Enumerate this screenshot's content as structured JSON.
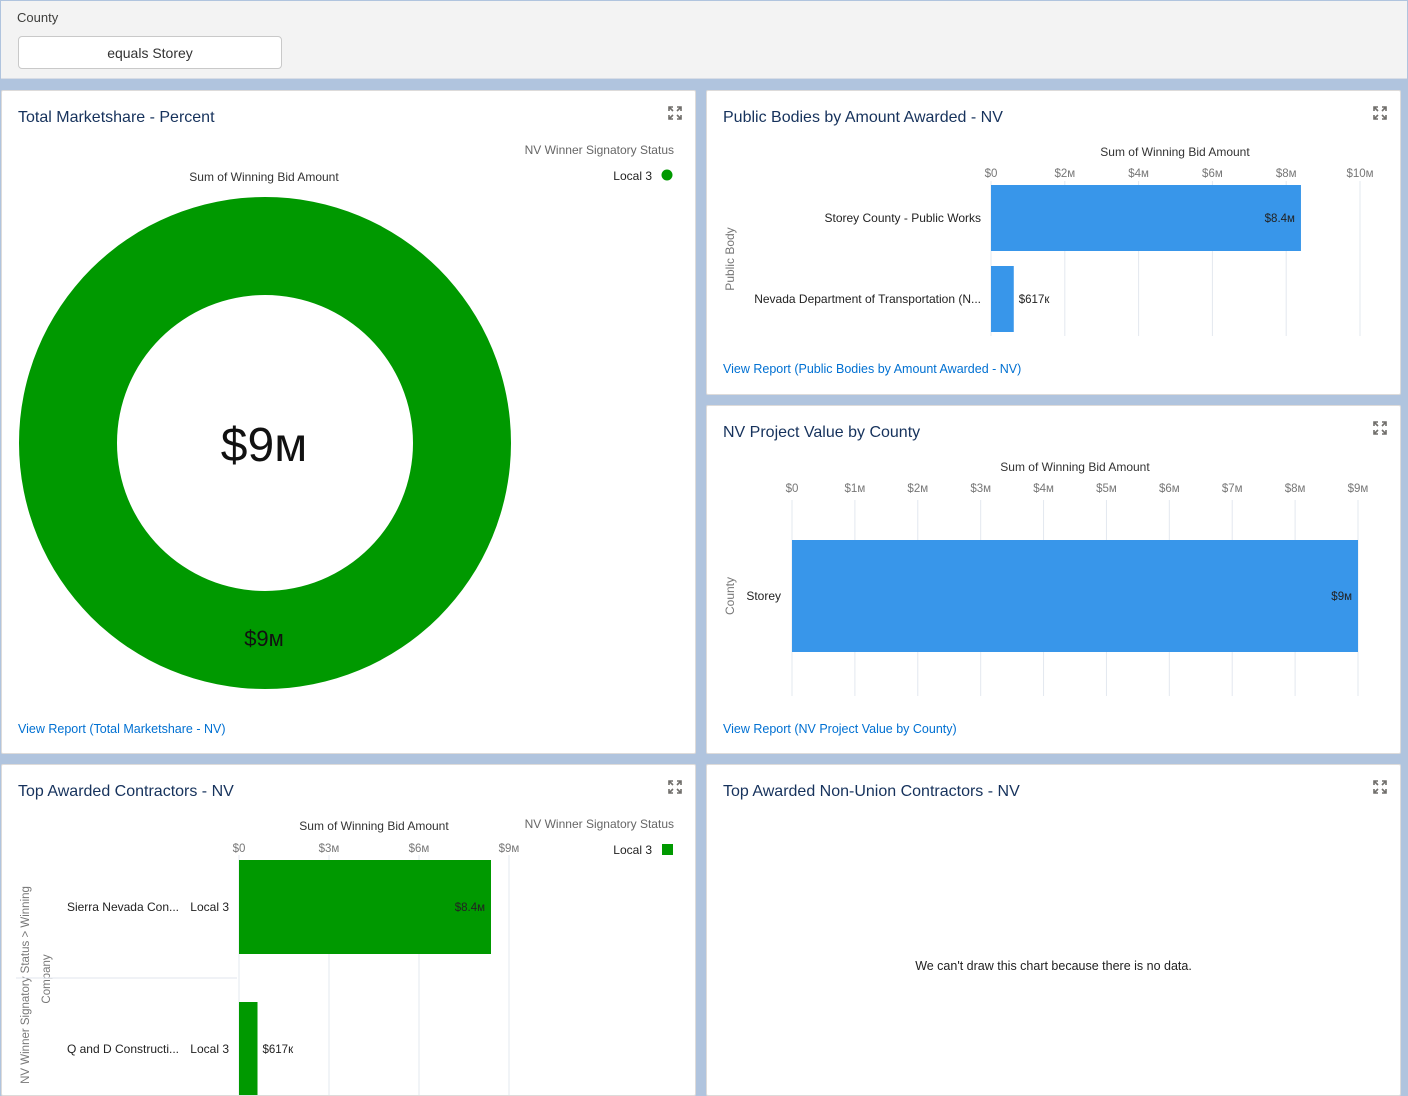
{
  "filter": {
    "label": "County",
    "value": "equals Storey"
  },
  "colors": {
    "accent_green": "#009900",
    "bar_blue": "#3896ea",
    "link": "#0070d2"
  },
  "cards": {
    "marketshare": {
      "title": "Total Marketshare - Percent",
      "link": "View Report (Total Marketshare - NV)",
      "legend_title": "NV Winner Signatory Status",
      "legend_item": "Local 3",
      "metric_label": "Sum of Winning Bid Amount",
      "center_value": "$9м",
      "slice_label": "$9м"
    },
    "public_bodies": {
      "title": "Public Bodies by Amount Awarded - NV",
      "link": "View Report (Public Bodies by Amount Awarded - NV)",
      "xlabel": "Sum of Winning Bid Amount",
      "ylabel": "Public Body"
    },
    "county_value": {
      "title": "NV Project Value by County",
      "link": "View Report (NV Project Value by County)",
      "xlabel": "Sum of Winning Bid Amount",
      "ylabel": "County"
    },
    "top_contractors": {
      "title": "Top Awarded Contractors - NV",
      "xlabel": "Sum of Winning Bid Amount",
      "ylabel_top": "NV Winner Signatory Status  >  Winning",
      "ylabel_bottom": "Company",
      "legend_title": "NV Winner Signatory Status",
      "legend_item": "Local 3"
    },
    "nonunion": {
      "title": "Top Awarded Non-Union Contractors - NV",
      "nodata": "We can't draw this chart because there is no data."
    }
  },
  "chart_data": [
    {
      "type": "pie",
      "title": "Total Marketshare - Percent",
      "series": [
        {
          "name": "Local 3",
          "values": [
            9000000
          ]
        }
      ],
      "categories": [
        "Local 3"
      ],
      "slice_labels": [
        "$9м"
      ],
      "center_label": "$9м"
    },
    {
      "type": "bar",
      "orientation": "horizontal",
      "categories": [
        "Storey County - Public Works",
        "Nevada Department of Transportation (N..."
      ],
      "values": [
        8400000,
        617000
      ],
      "value_labels": [
        "$8.4м",
        "$617к"
      ],
      "xlabel": "Sum of Winning Bid Amount",
      "ylabel": "Public Body",
      "xlim": [
        0,
        10000000
      ],
      "xticks": [
        0,
        2000000,
        4000000,
        6000000,
        8000000,
        10000000
      ],
      "xtick_labels": [
        "$0",
        "$2м",
        "$4м",
        "$6м",
        "$8м",
        "$10м"
      ]
    },
    {
      "type": "bar",
      "orientation": "horizontal",
      "categories": [
        "Storey"
      ],
      "values": [
        9000000
      ],
      "value_labels": [
        "$9м"
      ],
      "xlabel": "Sum of Winning Bid Amount",
      "ylabel": "County",
      "xlim": [
        0,
        9000000
      ],
      "xticks": [
        0,
        1000000,
        2000000,
        3000000,
        4000000,
        5000000,
        6000000,
        7000000,
        8000000,
        9000000
      ],
      "xtick_labels": [
        "$0",
        "$1м",
        "$2м",
        "$3м",
        "$4м",
        "$5м",
        "$6м",
        "$7м",
        "$8м",
        "$9м"
      ]
    },
    {
      "type": "bar",
      "orientation": "horizontal",
      "categories": [
        "Sierra Nevada Con...",
        "Q and D Constructi..."
      ],
      "groups": [
        "Local 3",
        "Local 3"
      ],
      "values": [
        8400000,
        617000
      ],
      "value_labels": [
        "$8.4м",
        "$617к"
      ],
      "xlabel": "Sum of Winning Bid Amount",
      "ylabel": "NV Winner Signatory Status > Winning Company",
      "xlim": [
        0,
        9000000
      ],
      "xticks": [
        0,
        3000000,
        6000000,
        9000000
      ],
      "xtick_labels": [
        "$0",
        "$3м",
        "$6м",
        "$9м"
      ]
    }
  ]
}
